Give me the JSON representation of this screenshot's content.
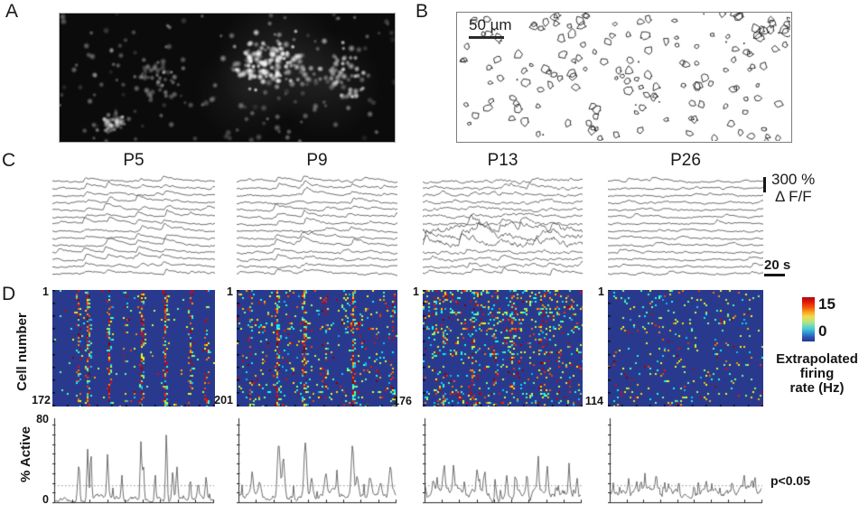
{
  "panel_a": {
    "label": "A"
  },
  "panel_b": {
    "label": "B",
    "scale_bar_label": "50 µm"
  },
  "panel_c": {
    "label": "C",
    "ages": [
      "P5",
      "P9",
      "P13",
      "P26"
    ],
    "amp_scale_value": "300 %",
    "amp_scale_unit": "Δ F/F",
    "time_scale": "20 s"
  },
  "panel_d": {
    "label": "D",
    "y_axis_label": "Cell number",
    "first_cell_label": "1",
    "cell_counts": [
      "172",
      "201",
      "176",
      "114"
    ],
    "colorbar": {
      "max": "15",
      "min": "0",
      "title_line1": "Extrapolated",
      "title_line2": "firing",
      "title_line3": "rate (Hz)"
    }
  },
  "panel_active": {
    "y_axis_label": "% Active",
    "y_max": "80",
    "y_min": "0",
    "significance_label": "p<0.05"
  },
  "colors": {
    "heatmap_bg": "#293a8e",
    "trace_line": "#3d3d3d",
    "plot_line": "#4a4a4a",
    "axis": "#2a2a2a",
    "threshold": "#8a8a8a"
  },
  "chart_data": {
    "type": "figure",
    "firing_rate_range": [
      0,
      15
    ],
    "active_range": [
      0,
      80
    ],
    "threshold_pct": 17,
    "columns": [
      {
        "age": "P5",
        "n_cells": 172,
        "heatmap": {
          "bg_density": 0.016,
          "high_frac": 0.25,
          "row_streak_p": 0.05,
          "row_streak_mult": 2,
          "events": [
            {
              "x": 0.16,
              "c": 0.5
            },
            {
              "x": 0.21,
              "c": 0.8
            },
            {
              "x": 0.34,
              "c": 0.75
            },
            {
              "x": 0.44,
              "c": 0.25
            },
            {
              "x": 0.54,
              "c": 0.7
            },
            {
              "x": 0.69,
              "c": 0.8
            },
            {
              "x": 0.84,
              "c": 0.55
            },
            {
              "x": 0.94,
              "c": 0.35
            }
          ]
        },
        "traces": {
          "events": [
            0.21,
            0.34,
            0.54,
            0.69
          ],
          "participation": 0.82,
          "amp": 6.2,
          "extra": 1,
          "extra_amp": 3,
          "noise": 1.0,
          "heavy_rows": []
        },
        "active": {
          "base": 3,
          "noise": 1.2,
          "peak_width": 0.007,
          "spikes": 6,
          "peaks": [
            [
              0.15,
              40
            ],
            [
              0.205,
              52
            ],
            [
              0.225,
              50
            ],
            [
              0.33,
              42
            ],
            [
              0.42,
              26
            ],
            [
              0.54,
              62
            ],
            [
              0.555,
              35
            ],
            [
              0.63,
              18
            ],
            [
              0.7,
              70
            ],
            [
              0.74,
              30
            ],
            [
              0.765,
              28
            ],
            [
              0.85,
              20
            ],
            [
              0.9,
              16
            ],
            [
              0.95,
              22
            ]
          ]
        }
      },
      {
        "age": "P9",
        "n_cells": 201,
        "heatmap": {
          "bg_density": 0.05,
          "high_frac": 0.28,
          "row_streak_p": 0.22,
          "row_streak_mult": 2.5,
          "events": [
            {
              "x": 0.08,
              "c": 0.35
            },
            {
              "x": 0.25,
              "c": 0.8
            },
            {
              "x": 0.42,
              "c": 0.85
            },
            {
              "x": 0.55,
              "c": 0.35
            },
            {
              "x": 0.72,
              "c": 0.85
            },
            {
              "x": 0.97,
              "c": 0.45
            }
          ]
        },
        "traces": {
          "events": [
            0.25,
            0.42,
            0.72
          ],
          "participation": 0.65,
          "amp": 6.0,
          "extra": 2,
          "extra_amp": 3,
          "noise": 1.15,
          "heavy_rows": []
        },
        "active": {
          "base": 7,
          "noise": 1.6,
          "peak_width": 0.012,
          "spikes": 8,
          "peaks": [
            [
              0.08,
              18
            ],
            [
              0.13,
              12
            ],
            [
              0.25,
              58
            ],
            [
              0.28,
              35
            ],
            [
              0.42,
              56
            ],
            [
              0.46,
              20
            ],
            [
              0.55,
              22
            ],
            [
              0.62,
              12
            ],
            [
              0.72,
              54
            ],
            [
              0.75,
              25
            ],
            [
              0.83,
              16
            ],
            [
              0.9,
              14
            ],
            [
              0.96,
              26
            ]
          ]
        }
      },
      {
        "age": "P13",
        "n_cells": 176,
        "heatmap": {
          "bg_density": 0.085,
          "high_frac": 0.32,
          "row_streak_p": 0.3,
          "row_streak_mult": 2,
          "events": [
            {
              "x": 0.12,
              "c": 0.3
            },
            {
              "x": 0.3,
              "c": 0.4
            },
            {
              "x": 0.45,
              "c": 0.35
            },
            {
              "x": 0.55,
              "c": 0.4
            },
            {
              "x": 0.75,
              "c": 0.35
            }
          ]
        },
        "traces": {
          "events": [
            0.3,
            0.5,
            0.65,
            0.8
          ],
          "participation": 0.45,
          "amp": 4.5,
          "extra": 3,
          "extra_amp": 3,
          "noise": 1.5,
          "heavy_rows": [
            7,
            8,
            9
          ]
        },
        "active": {
          "base": 8,
          "noise": 2.0,
          "peak_width": 0.008,
          "spikes": 14,
          "peaks": [
            [
              0.05,
              12
            ],
            [
              0.12,
              22
            ],
            [
              0.18,
              26
            ],
            [
              0.25,
              16
            ],
            [
              0.33,
              20
            ],
            [
              0.38,
              24
            ],
            [
              0.45,
              14
            ],
            [
              0.52,
              20
            ],
            [
              0.58,
              16
            ],
            [
              0.65,
              18
            ],
            [
              0.72,
              26
            ],
            [
              0.78,
              28
            ],
            [
              0.85,
              12
            ],
            [
              0.92,
              16
            ],
            [
              0.97,
              22
            ]
          ]
        }
      },
      {
        "age": "P26",
        "n_cells": 114,
        "heatmap": {
          "bg_density": 0.05,
          "high_frac": 0.25,
          "row_streak_p": 0.12,
          "row_streak_mult": 1.5,
          "events": []
        },
        "traces": {
          "events": [],
          "participation": 0,
          "amp": 0,
          "extra": 2,
          "extra_amp": 3,
          "noise": 1.0,
          "heavy_rows": []
        },
        "active": {
          "base": 9,
          "noise": 1.8,
          "peak_width": 0.006,
          "spikes": 10,
          "peaks": [
            [
              0.06,
              10
            ],
            [
              0.12,
              14
            ],
            [
              0.2,
              10
            ],
            [
              0.3,
              17
            ],
            [
              0.38,
              9
            ],
            [
              0.45,
              12
            ],
            [
              0.55,
              9
            ],
            [
              0.63,
              10
            ],
            [
              0.72,
              8
            ],
            [
              0.8,
              9
            ],
            [
              0.88,
              14
            ],
            [
              0.95,
              10
            ]
          ]
        }
      }
    ]
  }
}
